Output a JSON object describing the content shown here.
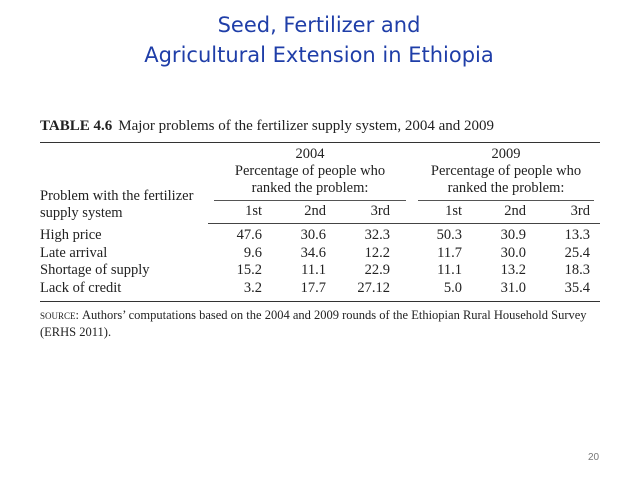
{
  "slide": {
    "title_line1": "Seed, Fertilizer and",
    "title_line2": "Agricultural Extension in Ethiopia",
    "page_number": "20"
  },
  "table": {
    "caption_tag": "TABLE 4.6",
    "caption_text": "Major problems of the fertilizer supply system, 2004 and 2009",
    "stub_header_line1": "Problem with the fertilizer",
    "stub_header_line2": "supply system",
    "period_subheader_line1": "Percentage of people who",
    "period_subheader_line2": "ranked the problem:",
    "periods": [
      {
        "year": "2004",
        "ranks": [
          "1st",
          "2nd",
          "3rd"
        ]
      },
      {
        "year": "2009",
        "ranks": [
          "1st",
          "2nd",
          "3rd"
        ]
      }
    ],
    "rows": [
      {
        "label": "High price",
        "values": [
          "47.6",
          "30.6",
          "32.3",
          "50.3",
          "30.9",
          "13.3"
        ]
      },
      {
        "label": "Late arrival",
        "values": [
          "9.6",
          "34.6",
          "12.2",
          "11.7",
          "30.0",
          "25.4"
        ]
      },
      {
        "label": "Shortage of supply",
        "values": [
          "15.2",
          "11.1",
          "22.9",
          "11.1",
          "13.2",
          "18.3"
        ]
      },
      {
        "label": "Lack of credit",
        "values": [
          "3.2",
          "17.7",
          "27.12",
          "5.0",
          "31.0",
          "35.4"
        ]
      }
    ],
    "source_label": "source:",
    "source_text": "Authors’ computations based on the 2004 and 2009 rounds of the Ethiopian Rural Household Survey (ERHS 2011)."
  }
}
